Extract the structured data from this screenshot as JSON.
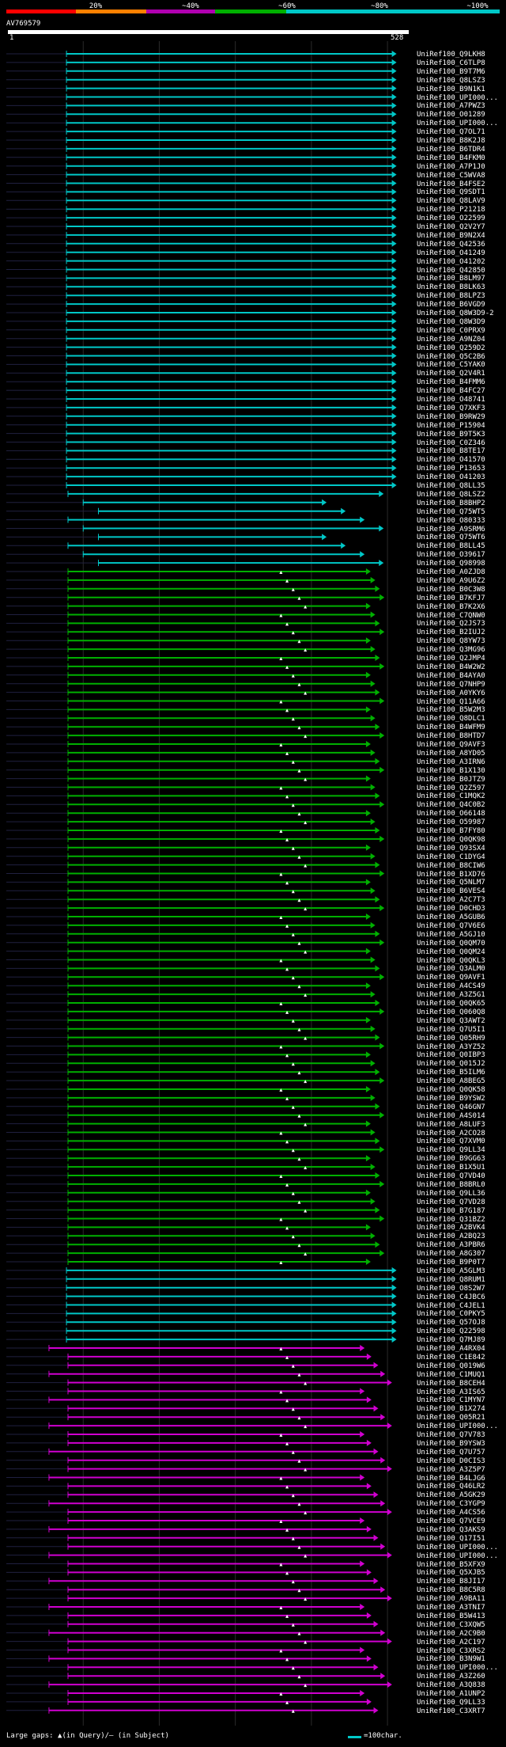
{
  "identity_scale": {
    "labels": [
      "20%",
      "~40%",
      "~60%",
      "~80%",
      "~100%"
    ],
    "colors": [
      "#ff0000",
      "#ff8000",
      "#b000b0",
      "#00b000",
      "#00c8c8"
    ]
  },
  "query": {
    "name": "AV769579",
    "start_label": "1",
    "end_label": "528",
    "length": 528
  },
  "colors": {
    "cyan": "#00c8c8",
    "green": "#00b000",
    "magenta": "#d000d0",
    "background": "#000000",
    "grid": "#2a2a2a"
  },
  "groups": [
    {
      "color": "cyan",
      "names": [
        "UniRef100_Q9LKH8",
        "UniRef100_C6TLP8",
        "UniRef100_B9T7M6",
        "UniRef100_Q8LSZ3",
        "UniRef100_B9N1K1",
        "UniRef100_UPI000...",
        "UniRef100_A7PWZ3",
        "UniRef100_O01289",
        "UniRef100_UPI000...",
        "UniRef100_Q7OL71",
        "UniRef100_B8K2J8",
        "UniRef100_B6TDR4",
        "UniRef100_B4FKM0",
        "UniRef100_A7P1J0",
        "UniRef100_C5WVA8",
        "UniRef100_B4FSE2",
        "UniRef100_Q9SDT1",
        "UniRef100_Q8LAV9",
        "UniRef100_P21218",
        "UniRef100_O22599",
        "UniRef100_Q2V2Y7",
        "UniRef100_B9N2X4",
        "UniRef100_Q42536",
        "UniRef100_O41249",
        "UniRef100_O41202",
        "UniRef100_Q42850",
        "UniRef100_B8LM97",
        "UniRef100_B8LK63",
        "UniRef100_B8LPZ3",
        "UniRef100_B6VGD9",
        "UniRef100_Q8W3D9-2",
        "UniRef100_Q8W3D9",
        "UniRef100_C0PRX9",
        "UniRef100_A9NZ04",
        "UniRef100_Q259D2",
        "UniRef100_Q5C2B6",
        "UniRef100_C5YAK0",
        "UniRef100_Q2V4R1",
        "UniRef100_B4FMM6",
        "UniRef100_B4FC27",
        "UniRef100_O48741",
        "UniRef100_Q7XKF3",
        "UniRef100_B9RW29",
        "UniRef100_P15904",
        "UniRef100_B9T5K3",
        "UniRef100_C0Z346",
        "UniRef100_B8TE17",
        "UniRef100_O41570",
        "UniRef100_P13653",
        "UniRef100_O41203",
        "UniRef100_Q8LL35",
        "UniRef100_Q8LSZ2",
        "UniRef100_B8BHP2",
        "UniRef100_Q75WT5",
        "UniRef100_O80333",
        "UniRef100_A9SRM6",
        "UniRef100_Q75WT6",
        "UniRef100_B8LL45",
        "UniRef100_O39617",
        "UniRef100_Q98998"
      ]
    },
    {
      "color": "green",
      "names": [
        "UniRef100_A0ZJD8",
        "UniRef100_A9U6Z2",
        "UniRef100_B0C3W8",
        "UniRef100_B7KFJ7",
        "UniRef100_B7K2X6",
        "UniRef100_C7QNW0",
        "UniRef100_Q2JS73",
        "UniRef100_B2IUJ2",
        "UniRef100_Q8YW73",
        "UniRef100_Q3MG96",
        "UniRef100_Q2JMP4",
        "UniRef100_B4W2W2",
        "UniRef100_B4AYA0",
        "UniRef100_Q7NHP9",
        "UniRef100_A0YKY6",
        "UniRef100_Q11A66",
        "UniRef100_B5W2M3",
        "UniRef100_Q8DLC1",
        "UniRef100_B4WFM9",
        "UniRef100_B8HTD7",
        "UniRef100_Q9AVF3",
        "UniRef100_A8YD05",
        "UniRef100_A3IRN6",
        "UniRef100_B1X130",
        "UniRef100_B0JTZ9",
        "UniRef100_Q2Z597",
        "UniRef100_C1MQK2",
        "UniRef100_Q4C0B2",
        "UniRef100_O66148",
        "UniRef100_O59987",
        "UniRef100_B7FY80",
        "UniRef100_Q0QK98",
        "UniRef100_Q93SX4",
        "UniRef100_C1DYG4",
        "UniRef100_B8CIW6",
        "UniRef100_B1XD76",
        "UniRef100_Q5NLM7",
        "UniRef100_B6VES4",
        "UniRef100_A2C7T3",
        "UniRef100_D0CHD3",
        "UniRef100_A5GUB6",
        "UniRef100_Q7V6E6",
        "UniRef100_A5GJ10",
        "UniRef100_Q0QM70",
        "UniRef100_Q0QM24",
        "UniRef100_Q0QKL3",
        "UniRef100_Q3ALM0",
        "UniRef100_Q9AVF1",
        "UniRef100_A4CS49",
        "UniRef100_A3Z5G1",
        "UniRef100_Q0QK65",
        "UniRef100_Q060Q8",
        "UniRef100_Q3AWT2",
        "UniRef100_Q7U5I1",
        "UniRef100_Q05RH9",
        "UniRef100_A3YZ52",
        "UniRef100_Q0IBP3",
        "UniRef100_Q015J2",
        "UniRef100_B5ILM6",
        "UniRef100_A8BEG5",
        "UniRef100_Q0QK58",
        "UniRef100_B9YSW2",
        "UniRef100_Q46GN7",
        "UniRef100_A4S014",
        "UniRef100_A8LUF3",
        "UniRef100_A2CO28",
        "UniRef100_Q7XVM0",
        "UniRef100_Q9LL34",
        "UniRef100_B9GG63",
        "UniRef100_B1X5U1",
        "UniRef100_Q7VD40",
        "UniRef100_B8BRL0",
        "UniRef100_Q9LL36",
        "UniRef100_Q7VD28",
        "UniRef100_B7G187",
        "UniRef100_Q31BZ2",
        "UniRef100_A2BVK4",
        "UniRef100_A2BQ23",
        "UniRef100_A3PBR6",
        "UniRef100_A8G307",
        "UniRef100_B9P0T7"
      ]
    },
    {
      "color": "cyan",
      "names": [
        "UniRef100_A5GLM3",
        "UniRef100_Q8RUM1",
        "UniRef100_O8S2W7",
        "UniRef100_C4JBC6",
        "UniRef100_C4JEL1",
        "UniRef100_C0PKY5",
        "UniRef100_Q57OJ8",
        "UniRef100_Q22598",
        "UniRef100_Q7MJ89"
      ]
    },
    {
      "color": "magenta",
      "names": [
        "UniRef100_A4RX04",
        "UniRef100_C1E842",
        "UniRef100_Q019W6",
        "UniRef100_C1MUQ1",
        "UniRef100_B8CEH4",
        "UniRef100_A3IS65",
        "UniRef100_C1MYN7",
        "UniRef100_B1X274",
        "UniRef100_Q05R21",
        "UniRef100_UPI000...",
        "UniRef100_Q7V783",
        "UniRef100_B9YSW3",
        "UniRef100_Q7U757",
        "UniRef100_D0CIS3",
        "UniRef100_A3Z5P7",
        "UniRef100_B4LJG6",
        "UniRef100_Q46LR2",
        "UniRef100_A5GK29",
        "UniRef100_C3YGP9",
        "UniRef100_A4CS56",
        "UniRef100_Q7VCE9",
        "UniRef100_Q3AKS9",
        "UniRef100_Q17I51",
        "UniRef100_UPI000...",
        "UniRef100_UPI000...",
        "UniRef100_B5XFX9",
        "UniRef100_Q5XJB5",
        "UniRef100_B8JI17",
        "UniRef100_B8C5R8",
        "UniRef100_A9BA11",
        "UniRef100_A3TNI7",
        "UniRef100_B5W413",
        "UniRef100_C3XQW5",
        "UniRef100_A2C9B0",
        "UniRef100_A2C197",
        "UniRef100_C3XRS2",
        "UniRef100_B3N9W1",
        "UniRef100_UPI000...",
        "UniRef100_A3Z260",
        "UniRef100_A3Q838",
        "UniRef100_A1UNP2",
        "UniRef100_Q9LL33",
        "UniRef100_C3XRT7"
      ]
    }
  ],
  "footer": {
    "legend_text": "Large gaps: ▲(in Query)/– (in Subject)",
    "scale_text": "=100char."
  }
}
